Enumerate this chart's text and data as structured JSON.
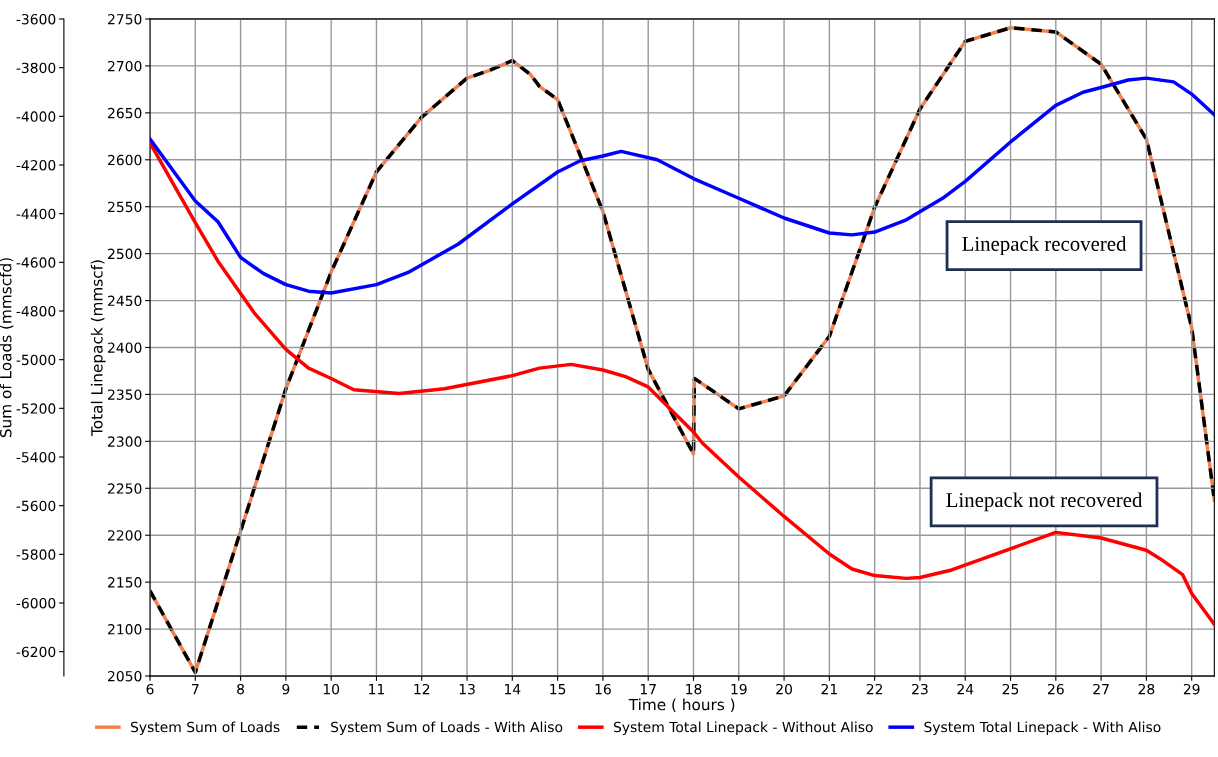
{
  "chart_data": {
    "type": "line",
    "xlabel": "Time ( hours )",
    "ylabel": "Total Linepack (mmscf)",
    "y2label": "Sum of Loads (mmscfd)",
    "xlim": [
      6,
      29.5
    ],
    "xticks": [
      6,
      7,
      8,
      9,
      10,
      11,
      12,
      13,
      14,
      15,
      16,
      17,
      18,
      19,
      20,
      21,
      22,
      23,
      24,
      25,
      26,
      27,
      28,
      29
    ],
    "ylim": [
      2050,
      2750
    ],
    "yticks": [
      2050,
      2100,
      2150,
      2200,
      2250,
      2300,
      2350,
      2400,
      2450,
      2500,
      2550,
      2600,
      2650,
      2700,
      2750
    ],
    "y2lim": [
      -6300,
      -3600
    ],
    "y2ticks": [
      -6200,
      -6000,
      -5800,
      -5600,
      -5400,
      -5200,
      -5000,
      -4800,
      -4600,
      -4400,
      -4200,
      -4000,
      -3800,
      -3600
    ],
    "grid": true,
    "legend": "bottom",
    "annotations": [
      "Linepack recovered",
      "Linepack not recovered"
    ],
    "series": [
      {
        "name": "System Sum of Loads",
        "color": "#f4804f",
        "axis": "y2",
        "line_style": "solid",
        "x": [
          6,
          7,
          8,
          9,
          10,
          11,
          12,
          13,
          13.5,
          14,
          14.4,
          14.6,
          15,
          16,
          17,
          18,
          18.02,
          19,
          20,
          21,
          22,
          23,
          24,
          25,
          26,
          27,
          28,
          29,
          29.5
        ],
        "values": [
          -5950,
          -6285,
          -5705,
          -5120,
          -4640,
          -4228,
          -4003,
          -3843,
          -3811,
          -3771,
          -3828,
          -3877,
          -3931,
          -4391,
          -5040,
          -5387,
          -5077,
          -5202,
          -5149,
          -4904,
          -4374,
          -3970,
          -3692,
          -3636,
          -3653,
          -3786,
          -4094,
          -4869,
          -5577
        ]
      },
      {
        "name": "System Sum of Loads - With Aliso",
        "color": "#000000",
        "axis": "y2",
        "line_style": "dashed",
        "x": [
          6,
          7,
          8,
          9,
          10,
          11,
          12,
          13,
          13.5,
          14,
          14.4,
          14.6,
          15,
          16,
          17,
          18,
          18.02,
          19,
          20,
          21,
          22,
          23,
          24,
          25,
          26,
          27,
          28,
          29,
          29.5
        ],
        "values": [
          -5950,
          -6285,
          -5705,
          -5120,
          -4640,
          -4228,
          -4003,
          -3843,
          -3811,
          -3771,
          -3828,
          -3877,
          -3931,
          -4391,
          -5040,
          -5387,
          -5077,
          -5202,
          -5149,
          -4904,
          -4374,
          -3970,
          -3692,
          -3636,
          -3653,
          -3786,
          -4094,
          -4869,
          -5577
        ]
      },
      {
        "name": "System Total Linepack - Without Aliso",
        "color": "#ff0000",
        "line_style": "solid",
        "x": [
          6,
          7,
          7.5,
          8.3,
          9,
          9.5,
          10,
          10.5,
          11.5,
          12.5,
          14,
          14.6,
          15.3,
          16,
          16.5,
          17,
          18,
          18.2,
          19,
          20,
          21,
          21.5,
          22,
          22.7,
          23,
          23.7,
          26,
          27,
          28,
          28.3,
          28.8,
          29,
          29.5
        ],
        "values": [
          2618,
          2533,
          2492,
          2437,
          2398,
          2378,
          2367,
          2355,
          2351,
          2356,
          2370,
          2378,
          2382,
          2376,
          2369,
          2358,
          2310,
          2298,
          2262,
          2220,
          2180,
          2164,
          2157,
          2154,
          2155,
          2163,
          2203,
          2197,
          2184,
          2175,
          2158,
          2138,
          2105
        ]
      },
      {
        "name": "System Total Linepack - With Aliso",
        "color": "#0000ff",
        "line_style": "solid",
        "x": [
          6,
          7,
          7.5,
          8,
          8.5,
          9,
          9.5,
          10,
          11,
          11.7,
          12.8,
          14,
          15,
          15.5,
          16,
          16.4,
          17.2,
          18,
          19,
          20,
          21,
          21.5,
          22,
          22.7,
          23.5,
          24,
          25,
          26,
          26.6,
          27,
          27.6,
          28,
          28.6,
          29,
          29.5
        ],
        "values": [
          2622,
          2556,
          2534,
          2496,
          2479,
          2467,
          2460,
          2458,
          2467,
          2480,
          2510,
          2553,
          2587,
          2599,
          2604,
          2609,
          2600,
          2580,
          2559,
          2538,
          2522,
          2520,
          2523,
          2536,
          2559,
          2577,
          2619,
          2658,
          2672,
          2677,
          2685,
          2687,
          2683,
          2670,
          2648
        ]
      }
    ]
  }
}
